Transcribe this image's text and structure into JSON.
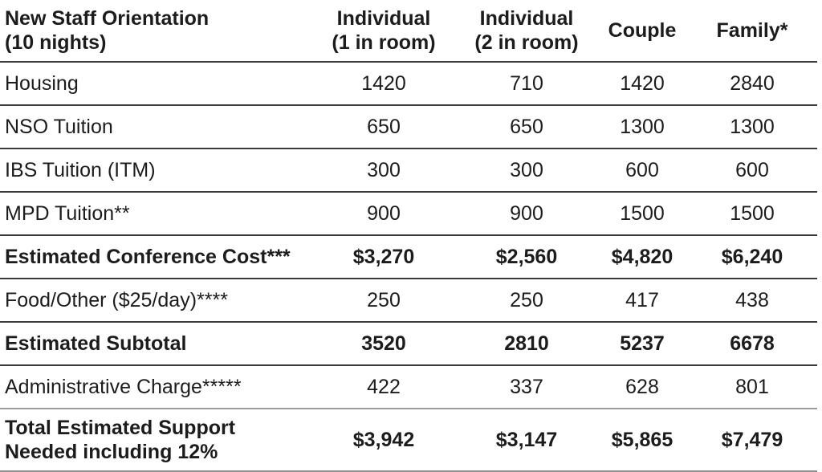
{
  "table": {
    "columns": [
      {
        "label": "New Staff Orientation\n(10 nights)"
      },
      {
        "label": "Individual\n(1 in room)"
      },
      {
        "label": "Individual\n(2 in room)"
      },
      {
        "label": "Couple"
      },
      {
        "label": "Family*"
      }
    ],
    "rows": [
      {
        "label": "Housing",
        "values": [
          "1420",
          "710",
          "1420",
          "2840"
        ],
        "bold": false
      },
      {
        "label": "NSO Tuition",
        "values": [
          "650",
          "650",
          "1300",
          "1300"
        ],
        "bold": false
      },
      {
        "label": "IBS Tuition (ITM)",
        "values": [
          "300",
          "300",
          "600",
          "600"
        ],
        "bold": false
      },
      {
        "label": "MPD Tuition**",
        "values": [
          "900",
          "900",
          "1500",
          "1500"
        ],
        "bold": false
      },
      {
        "label": "Estimated Conference Cost***",
        "values": [
          "$3,270",
          "$2,560",
          "$4,820",
          "$6,240"
        ],
        "bold": true
      },
      {
        "label": "Food/Other ($25/day)****",
        "values": [
          "250",
          "250",
          "417",
          "438"
        ],
        "bold": false
      },
      {
        "label": "Estimated Subtotal",
        "values": [
          "3520",
          "2810",
          "5237",
          "6678"
        ],
        "bold": true
      },
      {
        "label": "Administrative Charge*****",
        "values": [
          "422",
          "337",
          "628",
          "801"
        ],
        "bold": false
      },
      {
        "label": "Total Estimated Support\nNeeded including 12%",
        "values": [
          "$3,942",
          "$3,147",
          "$5,865",
          "$7,479"
        ],
        "bold": true
      }
    ]
  },
  "colors": {
    "row_border": "#3a3a3a",
    "total_section_border": "#9c9c9c",
    "bottom_border": "#8f8f8f",
    "text": "#1c1c1c",
    "background": "#ffffff"
  }
}
